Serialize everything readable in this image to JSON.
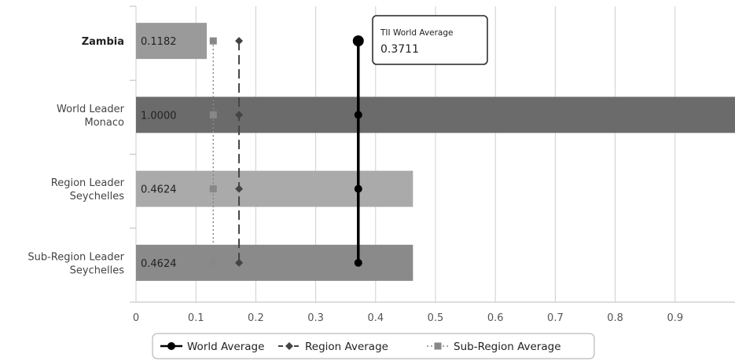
{
  "chart_data": {
    "type": "bar",
    "orientation": "horizontal",
    "categories": [
      {
        "lines": [
          "Zambia"
        ],
        "bold": true
      },
      {
        "lines": [
          "World Leader",
          "Monaco"
        ],
        "bold": false
      },
      {
        "lines": [
          "Region Leader",
          "Seychelles"
        ],
        "bold": false
      },
      {
        "lines": [
          "Sub-Region Leader",
          "Seychelles"
        ],
        "bold": false
      }
    ],
    "values": [
      0.1182,
      1.0,
      0.4624,
      0.4624
    ],
    "value_labels": [
      "0.1182",
      "1.0000",
      "0.4624",
      "0.4624"
    ],
    "bar_colors": [
      "#9a9a9a",
      "#6b6b6b",
      "#aaaaaa",
      "#8a8a8a"
    ],
    "xlim": [
      0,
      1
    ],
    "x_ticks": [
      0,
      0.1,
      0.2,
      0.3,
      0.4,
      0.5,
      0.6,
      0.7,
      0.8,
      0.9
    ],
    "x_tick_labels": [
      "0",
      "0.1",
      "0.2",
      "0.3",
      "0.4",
      "0.5",
      "0.6",
      "0.7",
      "0.8",
      "0.9"
    ],
    "grid": true,
    "reference_lines": [
      {
        "name": "World Average",
        "value": 0.3711,
        "style": "solid",
        "marker": "circle",
        "color": "#000000"
      },
      {
        "name": "Region Average",
        "value": 0.172,
        "style": "dashed",
        "marker": "diamond",
        "color": "#444444"
      },
      {
        "name": "Sub-Region Average",
        "value": 0.129,
        "style": "dotted",
        "marker": "square",
        "color": "#888888"
      }
    ],
    "tooltip": {
      "title": "TII World Average",
      "value": "0.3711"
    },
    "legend": {
      "position": "bottom",
      "items": [
        "World Average",
        "Region Average",
        "Sub-Region Average"
      ]
    }
  }
}
